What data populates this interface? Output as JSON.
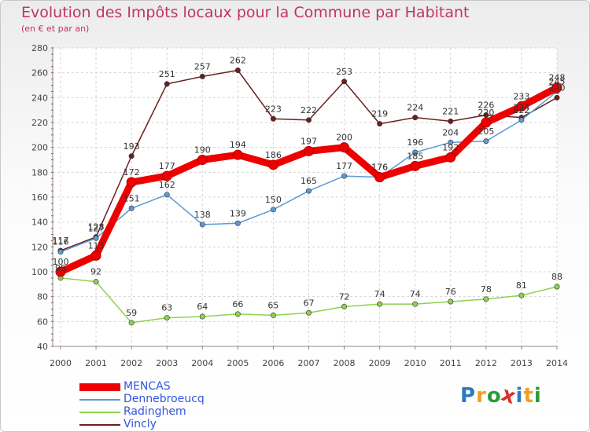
{
  "chart_title": "Evolution des Impôts locaux pour la Commune par Habitant",
  "chart_subtitle": "(en € et par an)",
  "chart_data": {
    "type": "line",
    "title": "Evolution des Impôts locaux pour la Commune par Habitant",
    "subtitle": "(en € et par an)",
    "xlabel": "",
    "ylabel": "",
    "x": [
      "2000",
      "2001",
      "2002",
      "2003",
      "2004",
      "2005",
      "2006",
      "2007",
      "2008",
      "2009",
      "2010",
      "2011",
      "2012",
      "2013",
      "2014"
    ],
    "ylim": [
      40,
      280
    ],
    "yticks": [
      40,
      60,
      80,
      100,
      120,
      140,
      160,
      180,
      200,
      220,
      240,
      260,
      280
    ],
    "grid": true,
    "legend_position": "bottom-left",
    "series": [
      {
        "name": "Vincly",
        "color": "#6b1f1f",
        "values": [
          117,
          128,
          193,
          251,
          257,
          262,
          223,
          222,
          253,
          219,
          224,
          221,
          226,
          224,
          240
        ]
      },
      {
        "name": "Dennebroeucq",
        "color": "#5b9bd5",
        "values": [
          116,
          127,
          151,
          162,
          138,
          139,
          150,
          165,
          177,
          176,
          196,
          204,
          205,
          222,
          245
        ]
      },
      {
        "name": "Radinghem",
        "color": "#8fd14f",
        "values": [
          95,
          92,
          59,
          63,
          64,
          66,
          65,
          67,
          72,
          74,
          74,
          76,
          78,
          81,
          88
        ]
      },
      {
        "name": "MENCAS",
        "color": "#ee0000",
        "values": [
          100,
          113,
          172,
          177,
          190,
          194,
          186,
          197,
          200,
          176,
          185,
          192,
          220,
          233,
          248
        ]
      }
    ]
  },
  "legend": [
    {
      "label": "MENCAS",
      "color": "#ee0000",
      "label_color": "#3355dd"
    },
    {
      "label": "Dennebroeucq",
      "color": "#5b9bd5",
      "label_color": "#3355dd"
    },
    {
      "label": "Radinghem",
      "color": "#8fd14f",
      "label_color": "#3355dd"
    },
    {
      "label": "Vincly",
      "color": "#6b1f1f",
      "label_color": "#3355dd"
    }
  ],
  "logo": {
    "letters": [
      "P",
      "r",
      "o",
      "x",
      "i",
      "t",
      "i"
    ],
    "colors": [
      "#2b78c4",
      "#f0a020",
      "#2b9b3a",
      "#d9302b",
      "#2b78c4",
      "#f0a020",
      "#2b9b3a"
    ]
  }
}
